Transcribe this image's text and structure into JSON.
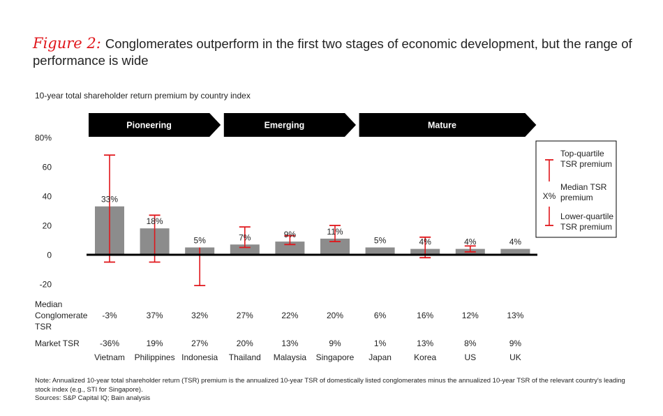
{
  "figure": {
    "label": "Figure 2:",
    "title": "Conglomerates outperform in the first two stages of economic development, but the range of performance is wide"
  },
  "chart_data": {
    "type": "bar",
    "title": "10-year total shareholder return premium by country index",
    "categories": [
      "Vietnam",
      "Philippines",
      "Indonesia",
      "Thailand",
      "Malaysia",
      "Singapore",
      "Japan",
      "Korea",
      "US",
      "UK"
    ],
    "series": [
      {
        "values": [
          33,
          18,
          5,
          7,
          9,
          11,
          5,
          4,
          4,
          4
        ],
        "labels": [
          "33%",
          "18%",
          "5%",
          "7%",
          "9%",
          "11%",
          "5%",
          "4%",
          "4%",
          "4%"
        ],
        "top_quartile": [
          68,
          27,
          null,
          19,
          13,
          20,
          null,
          12,
          6,
          null
        ],
        "lower_quartile": [
          -5,
          -5,
          -21,
          5,
          7,
          9,
          null,
          -2,
          2,
          null
        ]
      }
    ],
    "yticks": [
      {
        "value": 80,
        "label": "80%"
      },
      {
        "value": 60,
        "label": "60"
      },
      {
        "value": 40,
        "label": "40"
      },
      {
        "value": 20,
        "label": "20"
      },
      {
        "value": 0,
        "label": "0"
      },
      {
        "value": -20,
        "label": "-20"
      }
    ],
    "ylim": [
      -20,
      80
    ],
    "grid": false,
    "stages": [
      {
        "label": "Pioneering",
        "from": 0,
        "to": 2
      },
      {
        "label": "Emerging",
        "from": 3,
        "to": 5
      },
      {
        "label": "Mature",
        "from": 6,
        "to": 9
      }
    ],
    "table_rows": [
      {
        "label": "Median Conglomerate TSR",
        "values": [
          "-3%",
          "37%",
          "32%",
          "27%",
          "22%",
          "20%",
          "6%",
          "16%",
          "12%",
          "13%"
        ]
      },
      {
        "label": "Market TSR",
        "values": [
          "-36%",
          "19%",
          "27%",
          "20%",
          "13%",
          "9%",
          "1%",
          "13%",
          "8%",
          "9%"
        ]
      }
    ],
    "legend": {
      "position": "right",
      "top": "Top-quartile TSR premium",
      "median_marker": "X%",
      "median": "Median TSR premium",
      "lower": "Lower-quartile TSR premium"
    },
    "colors": {
      "bar": "#8c8c8c",
      "whisker": "#e0161b",
      "banner": "#000000",
      "axis": "#000000"
    }
  },
  "notes": {
    "note": "Note: Annualized 10-year total shareholder return (TSR) premium is the annualized 10-year TSR of domestically listed conglomerates minus the annualized 10-year TSR of the relevant country's leading stock index (e.g., STI for Singapore).",
    "sources": "Sources: S&P Capital IQ; Bain analysis"
  }
}
